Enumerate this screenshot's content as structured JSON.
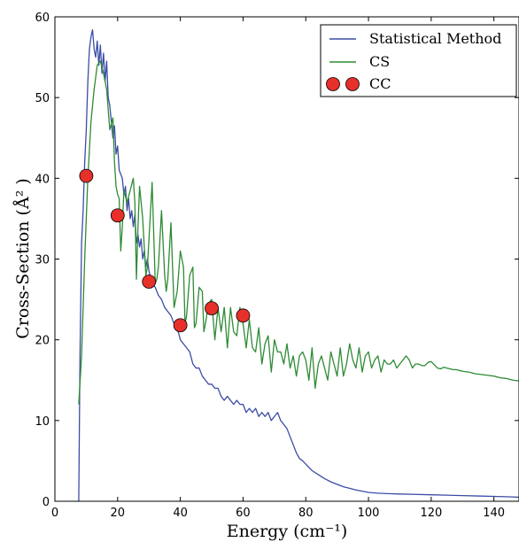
{
  "chart_data": {
    "type": "line",
    "title": "",
    "xlabel": "Energy (cm⁻¹)",
    "ylabel": "Cross-Section (Å² )",
    "xlim": [
      0,
      148
    ],
    "ylim": [
      0,
      60
    ],
    "xticks": [
      "0",
      "20",
      "40",
      "60",
      "80",
      "100",
      "120",
      "140"
    ],
    "yticks": [
      "0",
      "10",
      "20",
      "30",
      "40",
      "50",
      "60"
    ],
    "grid": false,
    "legend_position": "top-right",
    "series": [
      {
        "name": "Statistical Method",
        "kind": "line",
        "color": "#3b4ca6",
        "x": [
          7.6,
          8.0,
          8.5,
          9.0,
          9.5,
          10.0,
          10.5,
          11.0,
          11.5,
          12.0,
          12.5,
          13.0,
          13.5,
          14.0,
          14.5,
          15.0,
          15.5,
          16.0,
          16.5,
          17.0,
          17.5,
          18.0,
          18.5,
          19.0,
          19.5,
          20.0,
          20.5,
          21.0,
          21.5,
          22.0,
          22.5,
          23.0,
          23.5,
          24.0,
          24.5,
          25.0,
          25.5,
          26.0,
          26.5,
          27.0,
          27.5,
          28.0,
          28.5,
          29.0,
          29.5,
          30.0,
          31.0,
          32.0,
          33.0,
          34.0,
          35.0,
          36.0,
          37.0,
          38.0,
          39.0,
          40.0,
          41.0,
          42.0,
          43.0,
          44.0,
          45.0,
          46.0,
          47.0,
          48.0,
          49.0,
          50.0,
          51.0,
          52.0,
          53.0,
          54.0,
          55.0,
          56.0,
          57.0,
          58.0,
          59.0,
          60.0,
          61.0,
          62.0,
          63.0,
          64.0,
          65.0,
          66.0,
          67.0,
          68.0,
          69.0,
          70.0,
          71.0,
          72.0,
          73.0,
          74.0,
          75.0,
          76.0,
          77.0,
          78.0,
          79.0,
          80.0,
          82.0,
          84.0,
          86.0,
          88.0,
          90.0,
          92.0,
          94.0,
          96.0,
          98.0,
          100.0,
          103.0,
          106.0,
          110.0,
          115.0,
          120.0,
          125.0,
          130.0,
          135.0,
          140.0,
          145.0,
          148.0
        ],
        "y": [
          0.0,
          18.0,
          32.0,
          36.0,
          42.0,
          46.0,
          52.0,
          56.0,
          57.5,
          58.4,
          56.0,
          55.0,
          57.0,
          54.0,
          56.5,
          53.0,
          55.5,
          52.0,
          54.5,
          50.0,
          49.0,
          47.0,
          45.0,
          46.5,
          43.0,
          44.0,
          41.0,
          40.5,
          40.0,
          38.0,
          39.0,
          36.0,
          37.5,
          35.0,
          36.0,
          34.0,
          35.5,
          32.0,
          33.0,
          31.5,
          32.5,
          30.0,
          31.0,
          29.0,
          30.0,
          28.5,
          27.0,
          26.5,
          25.5,
          25.0,
          24.0,
          23.5,
          23.0,
          22.0,
          21.5,
          20.0,
          19.5,
          19.0,
          18.5,
          17.0,
          16.5,
          16.5,
          15.5,
          15.0,
          14.5,
          14.5,
          14.0,
          14.0,
          13.0,
          12.5,
          13.0,
          12.5,
          12.0,
          12.5,
          12.0,
          12.0,
          11.0,
          11.5,
          11.0,
          11.5,
          10.5,
          11.0,
          10.5,
          11.0,
          10.0,
          10.5,
          11.0,
          10.0,
          9.5,
          9.0,
          8.0,
          7.0,
          6.0,
          5.3,
          5.0,
          4.6,
          3.8,
          3.3,
          2.8,
          2.4,
          2.1,
          1.8,
          1.6,
          1.4,
          1.25,
          1.1,
          1.0,
          0.95,
          0.9,
          0.85,
          0.8,
          0.75,
          0.7,
          0.65,
          0.6,
          0.55,
          0.5
        ]
      },
      {
        "name": "CS",
        "kind": "line",
        "color": "#2e8b34",
        "x": [
          7.6,
          8.5,
          9.5,
          10.5,
          11.5,
          12.5,
          13.5,
          14.5,
          15.5,
          16.5,
          17.5,
          18.5,
          19.0,
          19.5,
          20.0,
          20.5,
          21.0,
          21.5,
          22.0,
          23.0,
          24.0,
          25.0,
          25.5,
          26.0,
          26.5,
          27.0,
          28.0,
          29.0,
          29.5,
          30.0,
          31.0,
          32.0,
          32.5,
          33.0,
          34.0,
          35.0,
          35.5,
          36.0,
          37.0,
          38.0,
          38.5,
          39.0,
          40.0,
          41.0,
          41.5,
          42.0,
          43.0,
          44.0,
          44.5,
          45.0,
          46.0,
          47.0,
          47.5,
          48.0,
          49.0,
          50.0,
          51.0,
          52.0,
          53.0,
          54.0,
          55.0,
          56.0,
          57.0,
          58.0,
          59.0,
          60.0,
          61.0,
          62.0,
          63.0,
          64.0,
          65.0,
          66.0,
          67.0,
          68.0,
          69.0,
          70.0,
          71.0,
          72.0,
          73.0,
          74.0,
          75.0,
          76.0,
          77.0,
          78.0,
          79.0,
          80.0,
          81.0,
          82.0,
          83.0,
          84.0,
          85.0,
          86.0,
          87.0,
          88.0,
          89.0,
          90.0,
          91.0,
          92.0,
          93.0,
          94.0,
          95.0,
          96.0,
          97.0,
          98.0,
          99.0,
          100.0,
          101.0,
          102.0,
          103.0,
          104.0,
          105.0,
          106.0,
          107.0,
          108.0,
          109.0,
          110.0,
          111.0,
          112.0,
          113.0,
          114.0,
          115.0,
          116.0,
          117.0,
          118.0,
          119.0,
          120.0,
          121.0,
          122.0,
          123.0,
          124.0,
          125.0,
          126.0,
          127.0,
          128.0,
          129.0,
          130.0,
          132.0,
          134.0,
          136.0,
          138.0,
          140.0,
          142.0,
          144.0,
          146.0,
          148.0
        ],
        "y": [
          12.0,
          18.0,
          30.0,
          40.0,
          47.0,
          51.0,
          54.0,
          54.5,
          53.0,
          51.0,
          46.0,
          47.5,
          42.0,
          39.0,
          38.0,
          37.5,
          31.0,
          34.0,
          38.5,
          37.0,
          38.5,
          40.0,
          37.0,
          27.5,
          34.0,
          39.0,
          35.0,
          28.0,
          29.0,
          32.5,
          39.5,
          27.0,
          27.5,
          29.0,
          36.0,
          28.0,
          26.0,
          27.5,
          34.5,
          24.0,
          25.0,
          26.0,
          31.0,
          29.0,
          22.0,
          23.0,
          28.0,
          29.0,
          21.5,
          22.0,
          26.5,
          26.0,
          21.0,
          22.0,
          24.5,
          25.0,
          20.0,
          24.0,
          21.0,
          24.0,
          19.0,
          24.0,
          21.0,
          20.5,
          24.0,
          22.0,
          19.0,
          22.5,
          19.0,
          18.5,
          21.5,
          17.0,
          19.5,
          20.5,
          16.0,
          20.0,
          18.5,
          18.5,
          17.0,
          19.5,
          16.5,
          18.0,
          15.5,
          18.0,
          18.5,
          17.5,
          15.0,
          19.0,
          14.0,
          17.0,
          18.0,
          16.5,
          15.0,
          18.5,
          17.0,
          15.5,
          19.0,
          15.5,
          17.0,
          19.5,
          17.5,
          16.5,
          19.0,
          16.0,
          18.0,
          18.5,
          16.5,
          17.5,
          18.0,
          16.0,
          17.5,
          17.0,
          17.0,
          17.5,
          16.5,
          17.0,
          17.5,
          18.0,
          17.5,
          16.5,
          17.0,
          17.0,
          16.8,
          16.8,
          17.2,
          17.3,
          16.9,
          16.5,
          16.4,
          16.6,
          16.5,
          16.4,
          16.3,
          16.3,
          16.2,
          16.1,
          16.0,
          15.8,
          15.7,
          15.6,
          15.5,
          15.3,
          15.2,
          15.0,
          14.9
        ]
      },
      {
        "name": "CC",
        "kind": "scatter",
        "color": "#e8302a",
        "x": [
          10,
          20,
          30,
          40,
          50,
          60
        ],
        "y": [
          40.3,
          35.4,
          27.2,
          21.8,
          23.9,
          23.0
        ]
      }
    ]
  }
}
